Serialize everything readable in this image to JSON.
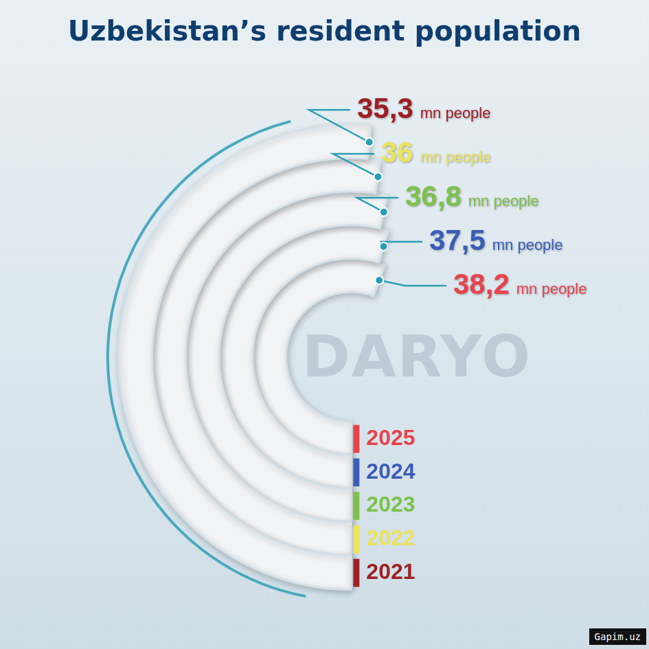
{
  "watermark": "DARYO",
  "credit": "Gapim.uz",
  "chart_data": {
    "type": "radial_bar",
    "title": "Uzbekistan’s resident population",
    "categories": [
      "2021",
      "2022",
      "2023",
      "2024",
      "2025"
    ],
    "values": [
      35.3,
      36,
      36.8,
      37.5,
      38.2
    ],
    "value_labels": [
      "35,3",
      "36",
      "36,8",
      "37,5",
      "38,2"
    ],
    "unit_label": "mn people",
    "colors": [
      "#9e1f23",
      "#ece45a",
      "#7cc24a",
      "#3b5db8",
      "#e8424b"
    ],
    "data_labels": true,
    "tick_labels": false
  }
}
